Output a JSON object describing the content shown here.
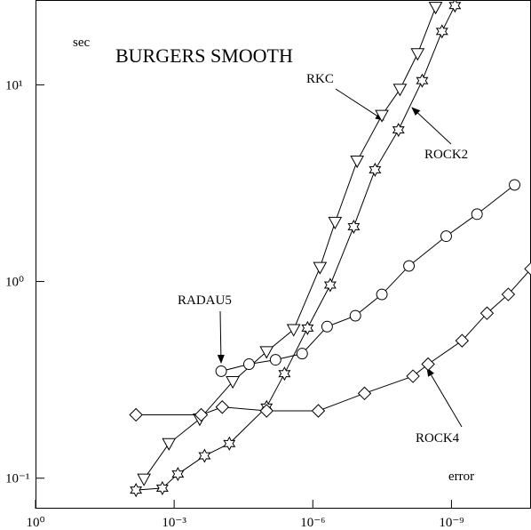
{
  "chart_data": {
    "type": "line",
    "title": "BURGERS SMOOTH",
    "x_label": "error",
    "y_label": "sec",
    "log_x": true,
    "log_y": true,
    "xlim": [
      1,
      1.9e-11
    ],
    "ylim": [
      0.07,
      27
    ],
    "xticks": [
      {
        "value": 1,
        "label": "10⁰"
      },
      {
        "value": 0.001,
        "label": "10⁻³"
      },
      {
        "value": 1e-06,
        "label": "10⁻⁶"
      },
      {
        "value": 1e-09,
        "label": "10⁻⁹"
      }
    ],
    "yticks": [
      {
        "value": 0.1,
        "label": "10⁻¹"
      },
      {
        "value": 1,
        "label": "10⁰"
      },
      {
        "value": 10,
        "label": "10¹"
      }
    ],
    "series": [
      {
        "name": "RKC",
        "color": "#000000",
        "marker": "triangle-down",
        "x": [
          0.0045,
          0.0013,
          0.00028,
          5.4e-05,
          1e-05,
          2.6e-06,
          7e-07,
          3.3e-07,
          1.1e-07,
          3.2e-08,
          1.3e-08,
          5.4e-09,
          2.2e-09
        ],
        "values": [
          0.099,
          0.15,
          0.2,
          0.31,
          0.44,
          0.57,
          1.18,
          2.0,
          4.1,
          7.0,
          9.5,
          14.4,
          24.8
        ]
      },
      {
        "name": "ROCK2",
        "color": "#000000",
        "marker": "star",
        "x": [
          0.0067,
          0.0018,
          0.00083,
          0.00022,
          6.4e-05,
          1e-05,
          4.1e-06,
          1.3e-06,
          4.2e-07,
          1.3e-07,
          4.5e-08,
          1.4e-08,
          4.3e-09,
          1.6e-09,
          8.4e-10
        ],
        "values": [
          0.087,
          0.089,
          0.105,
          0.13,
          0.15,
          0.23,
          0.34,
          0.58,
          0.96,
          1.9,
          3.7,
          5.9,
          10.5,
          18.7,
          25.3
        ]
      },
      {
        "name": "RADAU5",
        "color": "#000000",
        "marker": "circle",
        "x": [
          9.6e-05,
          2.4e-05,
          6.4e-06,
          1.7e-06,
          4.9e-07,
          1.2e-07,
          3.2e-08,
          8.3e-09,
          1.3e-09,
          2.8e-10,
          4.3e-11
        ],
        "values": [
          0.35,
          0.38,
          0.4,
          0.43,
          0.59,
          0.67,
          0.86,
          1.2,
          1.7,
          2.2,
          3.1
        ]
      },
      {
        "name": "ROCK4",
        "color": "#000000",
        "marker": "diamond",
        "x": [
          0.0067,
          0.00026,
          9.1e-05,
          1e-05,
          7.6e-07,
          7.6e-08,
          6.8e-09,
          3.2e-09,
          5.9e-10,
          1.7e-10,
          5.9e-11,
          1.9e-11
        ],
        "values": [
          0.21,
          0.21,
          0.23,
          0.22,
          0.22,
          0.27,
          0.33,
          0.38,
          0.5,
          0.69,
          0.86,
          1.16
        ]
      }
    ]
  }
}
